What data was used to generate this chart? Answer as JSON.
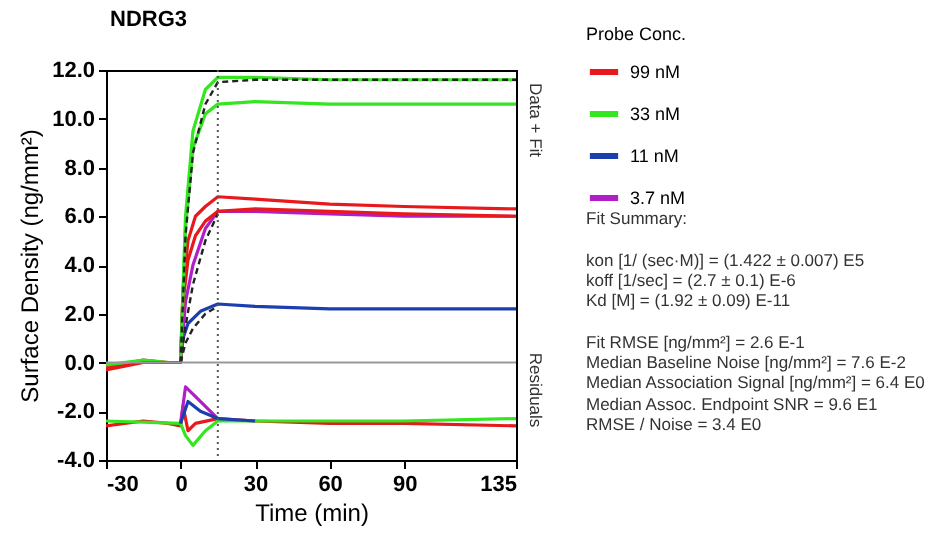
{
  "chart_data": {
    "type": "line",
    "title": "NDRG3",
    "xlabel": "Time (min)",
    "ylabel": "Surface Density (ng/mm²)",
    "legend_title": "Probe Conc.",
    "xlim": [
      -30,
      135
    ],
    "xticks": [
      -30,
      0,
      30,
      60,
      90,
      135
    ],
    "ylim": [
      -4,
      12
    ],
    "yticks": [
      {
        "value": -4,
        "label": "-4.0"
      },
      {
        "value": -2,
        "label": "-2.0"
      },
      {
        "value": 0,
        "label": "0.0"
      },
      {
        "value": 2,
        "label": "2.0"
      },
      {
        "value": 4,
        "label": "4.0"
      },
      {
        "value": 6,
        "label": "6.0"
      },
      {
        "value": 8,
        "label": "8.0"
      },
      {
        "value": 10,
        "label": "10.0"
      },
      {
        "value": 12,
        "label": "12.0"
      }
    ],
    "grid": false,
    "legend": "right",
    "marker": "none",
    "series": [
      {
        "name": "99 nM",
        "color": "#e8191c",
        "x": [
          -30,
          -15,
          -5,
          0,
          1,
          3,
          6,
          10,
          15,
          30,
          60,
          90,
          135
        ],
        "values": [
          -0.2,
          0.1,
          0.0,
          0.0,
          3.0,
          5.0,
          6.0,
          6.4,
          6.8,
          6.7,
          6.5,
          6.4,
          6.3
        ]
      },
      {
        "name": "33 nM",
        "color": "#33e61f",
        "x": [
          -30,
          -15,
          -5,
          0,
          2,
          5,
          10,
          15,
          30,
          60,
          90,
          135
        ],
        "values": [
          -0.1,
          0.1,
          0.0,
          0.0,
          6.0,
          9.5,
          11.2,
          11.7,
          11.7,
          11.6,
          11.6,
          11.6
        ]
      },
      {
        "name": "11 nM",
        "color": "#1c3fb0",
        "x": [
          0,
          1,
          3,
          8,
          15,
          30,
          60,
          90,
          135
        ],
        "values": [
          0.0,
          1.0,
          1.6,
          2.1,
          2.4,
          2.3,
          2.2,
          2.2,
          2.2
        ]
      },
      {
        "name": "3.7 nM",
        "color": "#b01ec8",
        "x": [
          0,
          2,
          5,
          10,
          15,
          30,
          60,
          90,
          135
        ],
        "values": [
          0.0,
          2.5,
          4.0,
          5.5,
          6.2,
          6.2,
          6.1,
          6.0,
          6.0
        ]
      },
      {
        "color": "#e8191c",
        "x": [
          -30,
          -15,
          0,
          1,
          3,
          6,
          10,
          15,
          30,
          60,
          90,
          135
        ],
        "values": [
          -0.3,
          0.0,
          0.0,
          2.5,
          4.2,
          5.2,
          5.8,
          6.2,
          6.3,
          6.2,
          6.1,
          6.0
        ]
      },
      {
        "color": "#33e61f",
        "x": [
          0,
          2,
          5,
          10,
          15,
          30,
          60,
          90,
          135
        ],
        "values": [
          0.0,
          5.5,
          8.8,
          10.2,
          10.6,
          10.7,
          10.6,
          10.6,
          10.6
        ]
      },
      {
        "color": "#222222",
        "line_style": "dashed",
        "x": [
          0,
          2,
          5,
          10,
          15,
          30,
          60,
          90,
          135
        ],
        "values": [
          0.0,
          5.2,
          8.6,
          10.6,
          11.5,
          11.6,
          11.6,
          11.6,
          11.6
        ]
      },
      {
        "color": "#222222",
        "line_style": "dashed",
        "x": [
          0,
          2,
          5,
          10,
          15
        ],
        "values": [
          0.0,
          0.8,
          1.4,
          2.0,
          2.3
        ]
      },
      {
        "color": "#222222",
        "line_style": "dashed",
        "x": [
          0,
          2,
          5,
          10,
          15
        ],
        "values": [
          0.0,
          1.5,
          3.2,
          5.0,
          6.1
        ]
      },
      {
        "color": "#e8191c",
        "x": [
          -30,
          -15,
          -5,
          0,
          1,
          3,
          6,
          15,
          30,
          60,
          90,
          135
        ],
        "values": [
          -2.6,
          -2.4,
          -2.5,
          -2.6,
          -1.8,
          -2.8,
          -2.5,
          -2.3,
          -2.4,
          -2.5,
          -2.5,
          -2.6
        ]
      },
      {
        "color": "#33e61f",
        "x": [
          -30,
          0,
          2,
          5,
          10,
          15,
          30,
          60,
          90,
          135
        ],
        "values": [
          -2.4,
          -2.5,
          -3.0,
          -3.4,
          -2.8,
          -2.4,
          -2.4,
          -2.4,
          -2.4,
          -2.3
        ]
      },
      {
        "color": "#b01ec8",
        "x": [
          0,
          2,
          5,
          10,
          15
        ],
        "values": [
          -2.5,
          -1.0,
          -1.3,
          -1.8,
          -2.3
        ]
      },
      {
        "color": "#1c3fb0",
        "x": [
          0,
          3,
          8,
          15,
          30
        ],
        "values": [
          -2.5,
          -1.6,
          -2.0,
          -2.3,
          -2.4
        ]
      }
    ],
    "ref_lines": [
      {
        "axis": "y",
        "value": 0,
        "color": "#999999",
        "line_style": "solid"
      },
      {
        "axis": "x",
        "value": 15,
        "color": "#555555",
        "line_style": "dotted"
      }
    ],
    "annotations": [
      "Data + Fit",
      "Residuals",
      "Fit Summary:",
      "kon  [1/ (sec·M)]  =   (1.422 ± 0.007) E5",
      "koff  [1/sec]  =   (2.7 ± 0.1) E-6",
      "Kd  [M]  =   (1.92 ± 0.09) E-11",
      "Fit RMSE [ng/mm²]  =   2.6 E-1",
      "Median Baseline Noise [ng/mm²]  =   7.6 E-2",
      "Median Association Signal [ng/mm²]  =   6.4 E0",
      "Median Assoc. Endpoint SNR  =   9.6 E1",
      "RMSE / Noise  =   3.4 E0"
    ]
  }
}
